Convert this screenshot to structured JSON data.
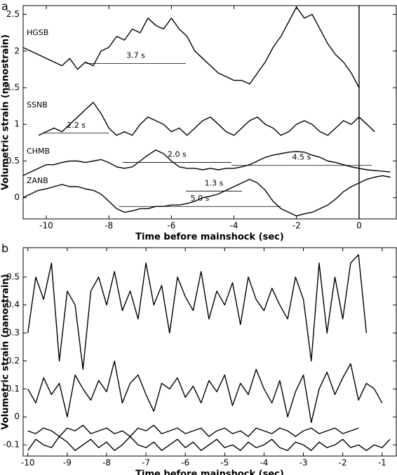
{
  "chart_data": [
    {
      "type": "line",
      "panel_label": "a",
      "xlabel": "Time before mainshock (sec)",
      "ylabel": "Volumetric strain (nanostrain)",
      "xlim": [
        -10.74,
        1.19
      ],
      "ylim": [
        -0.29,
        2.62
      ],
      "xticks": [
        -10,
        -8,
        -6,
        -4,
        -2,
        0
      ],
      "yticks": [
        0,
        0.5,
        1,
        1.5,
        2,
        2.5
      ],
      "x": [
        -10.75,
        -10.5,
        -10.25,
        -10,
        -9.75,
        -9.5,
        -9.25,
        -9,
        -8.75,
        -8.5,
        -8.25,
        -8,
        -7.75,
        -7.5,
        -7.25,
        -7,
        -6.75,
        -6.5,
        -6.25,
        -6,
        -5.75,
        -5.5,
        -5.25,
        -5,
        -4.75,
        -4.5,
        -4.25,
        -4,
        -3.75,
        -3.5,
        -3.25,
        -3,
        -2.75,
        -2.5,
        -2.25,
        -2,
        -1.75,
        -1.5,
        -1.25,
        -1,
        -0.75,
        -0.5,
        -0.25,
        0,
        0.25,
        0.5,
        0.75,
        1
      ],
      "series": [
        {
          "name": "HGSB",
          "color": "#000000",
          "values": [
            2.05,
            2.0,
            1.95,
            1.9,
            1.85,
            1.8,
            1.9,
            1.75,
            1.85,
            1.8,
            2.0,
            2.05,
            2.2,
            2.15,
            2.3,
            2.25,
            2.45,
            2.35,
            2.3,
            2.45,
            2.3,
            2.2,
            2.0,
            1.9,
            1.8,
            1.7,
            1.65,
            1.6,
            1.6,
            1.55,
            1.7,
            1.85,
            2.05,
            2.2,
            2.4,
            2.6,
            2.45,
            2.5,
            2.3,
            2.1,
            1.95,
            1.85,
            1.7,
            1.5,
            null,
            null,
            null,
            null
          ]
        },
        {
          "name": "SSNB",
          "color": "#000000",
          "values": [
            null,
            null,
            0.85,
            0.9,
            0.95,
            0.9,
            1.0,
            1.1,
            1.2,
            1.3,
            1.15,
            0.95,
            0.85,
            0.9,
            0.85,
            1.0,
            1.1,
            1.05,
            1.0,
            0.9,
            0.95,
            0.85,
            0.95,
            1.05,
            1.1,
            1.0,
            0.9,
            0.85,
            0.95,
            1.05,
            1.1,
            1.0,
            0.95,
            0.85,
            0.9,
            1.0,
            1.05,
            1.0,
            0.9,
            0.85,
            0.95,
            1.05,
            1.0,
            1.1,
            1.0,
            0.9,
            null,
            null
          ]
        },
        {
          "name": "CHMB",
          "color": "#000000",
          "values": [
            0.3,
            0.35,
            0.4,
            0.45,
            0.45,
            0.48,
            0.5,
            0.5,
            0.48,
            0.5,
            0.52,
            0.48,
            0.42,
            0.4,
            0.42,
            0.5,
            0.58,
            0.65,
            0.6,
            0.5,
            0.42,
            0.4,
            0.4,
            0.38,
            0.4,
            0.38,
            0.4,
            0.4,
            0.42,
            0.45,
            0.5,
            0.55,
            0.58,
            0.6,
            0.62,
            0.63,
            0.62,
            0.58,
            0.55,
            0.5,
            0.48,
            0.45,
            0.42,
            0.4,
            0.38,
            0.37,
            0.36,
            0.35
          ]
        },
        {
          "name": "ZANB",
          "color": "#000000",
          "values": [
            0.0,
            0.05,
            0.1,
            0.12,
            0.15,
            0.18,
            0.15,
            0.15,
            0.12,
            0.1,
            0.05,
            -0.05,
            -0.15,
            -0.2,
            -0.18,
            -0.15,
            -0.15,
            -0.12,
            -0.12,
            -0.1,
            -0.1,
            -0.08,
            -0.05,
            0.0,
            0.02,
            0.05,
            0.1,
            0.15,
            0.2,
            0.25,
            0.2,
            0.1,
            -0.05,
            -0.15,
            -0.2,
            -0.25,
            -0.22,
            -0.2,
            -0.15,
            -0.1,
            -0.02,
            0.08,
            0.15,
            0.2,
            0.25,
            0.28,
            0.3,
            0.28
          ]
        }
      ],
      "vline": 0,
      "annotations": [
        {
          "text": "3.7 s",
          "x": [
            -8.74,
            -5.54
          ],
          "y": 1.83
        },
        {
          "text": "2.2 s",
          "x": [
            -10.09,
            -8.0
          ],
          "y": 0.88
        },
        {
          "text": "2.0 s",
          "x": [
            -7.56,
            -4.08
          ],
          "y": 0.48
        },
        {
          "text": "4.5 s",
          "x": [
            -4.08,
            0.4
          ],
          "y": 0.44
        },
        {
          "text": "1.3 s",
          "x": [
            -5.54,
            -3.74
          ],
          "y": 0.09
        },
        {
          "text": "5.0 s",
          "x": [
            -7.67,
            -2.51
          ],
          "y": -0.12
        }
      ]
    },
    {
      "type": "line",
      "panel_label": "b",
      "xlabel": "Time before mainshock (sec)",
      "ylabel": "Volumetric strain (nanostrain)",
      "xlim": [
        -10.12,
        -0.64
      ],
      "ylim": [
        -0.14,
        0.605
      ],
      "xticks": [
        -10,
        -9,
        -8,
        -7,
        -6,
        -5,
        -4,
        -3,
        -2,
        -1
      ],
      "yticks": [
        -0.1,
        0,
        0.1,
        0.2,
        0.3,
        0.4,
        0.5
      ],
      "x": [
        -10,
        -9.8,
        -9.6,
        -9.4,
        -9.2,
        -9,
        -8.8,
        -8.6,
        -8.4,
        -8.2,
        -8,
        -7.8,
        -7.6,
        -7.4,
        -7.2,
        -7,
        -6.8,
        -6.6,
        -6.4,
        -6.2,
        -6,
        -5.8,
        -5.6,
        -5.4,
        -5.2,
        -5,
        -4.8,
        -4.6,
        -4.4,
        -4.2,
        -4,
        -3.8,
        -3.6,
        -3.4,
        -3.2,
        -3,
        -2.8,
        -2.6,
        -2.4,
        -2.2,
        -2,
        -1.8,
        -1.6,
        -1.4,
        -1.2,
        -1,
        -0.8
      ],
      "series": [
        {
          "color": "#000000",
          "values": [
            0.3,
            0.5,
            0.42,
            0.55,
            0.2,
            0.45,
            0.4,
            0.17,
            0.45,
            0.5,
            0.4,
            0.52,
            0.38,
            0.45,
            0.35,
            0.55,
            0.4,
            0.47,
            0.3,
            0.5,
            0.43,
            0.38,
            0.52,
            0.35,
            0.45,
            0.4,
            0.48,
            0.33,
            0.5,
            0.42,
            0.38,
            0.46,
            0.4,
            0.35,
            0.5,
            0.42,
            0.2,
            0.55,
            0.3,
            0.5,
            0.35,
            0.55,
            0.58,
            0.3,
            null,
            null,
            null
          ]
        },
        {
          "color": "#000000",
          "values": [
            0.1,
            0.05,
            0.14,
            0.08,
            0.12,
            0.0,
            0.15,
            0.1,
            0.06,
            0.13,
            0.09,
            0.2,
            0.05,
            0.12,
            0.15,
            0.08,
            0.02,
            0.12,
            0.1,
            0.14,
            0.07,
            0.11,
            0.05,
            0.13,
            0.09,
            0.15,
            0.04,
            0.12,
            0.08,
            0.17,
            0.1,
            0.05,
            0.13,
            0.0,
            0.09,
            0.15,
            -0.02,
            0.1,
            0.16,
            0.08,
            0.14,
            0.19,
            0.06,
            0.12,
            0.1,
            0.05,
            null
          ]
        },
        {
          "color": "#000000",
          "values": [
            -0.05,
            -0.06,
            -0.04,
            -0.05,
            -0.07,
            -0.04,
            -0.05,
            -0.03,
            -0.06,
            -0.05,
            -0.04,
            -0.06,
            -0.05,
            -0.07,
            -0.04,
            -0.05,
            -0.03,
            -0.06,
            -0.05,
            -0.04,
            -0.06,
            -0.05,
            -0.04,
            -0.07,
            -0.05,
            -0.04,
            -0.06,
            -0.05,
            -0.07,
            -0.04,
            -0.05,
            -0.06,
            -0.04,
            -0.05,
            -0.07,
            -0.05,
            -0.04,
            -0.06,
            -0.05,
            -0.04,
            -0.06,
            -0.05,
            -0.04,
            null,
            null,
            null,
            null
          ]
        },
        {
          "color": "#000000",
          "values": [
            -0.12,
            -0.08,
            -0.1,
            -0.11,
            -0.07,
            -0.09,
            -0.12,
            -0.1,
            -0.08,
            -0.11,
            -0.09,
            -0.12,
            -0.1,
            -0.07,
            -0.1,
            -0.11,
            -0.09,
            -0.12,
            -0.1,
            -0.08,
            -0.11,
            -0.09,
            -0.12,
            -0.1,
            -0.08,
            -0.11,
            -0.1,
            -0.12,
            -0.09,
            -0.11,
            -0.1,
            -0.08,
            -0.11,
            -0.12,
            -0.09,
            -0.1,
            -0.12,
            -0.09,
            -0.11,
            -0.1,
            -0.08,
            -0.11,
            -0.1,
            -0.12,
            -0.1,
            -0.11,
            -0.08
          ]
        }
      ]
    }
  ]
}
